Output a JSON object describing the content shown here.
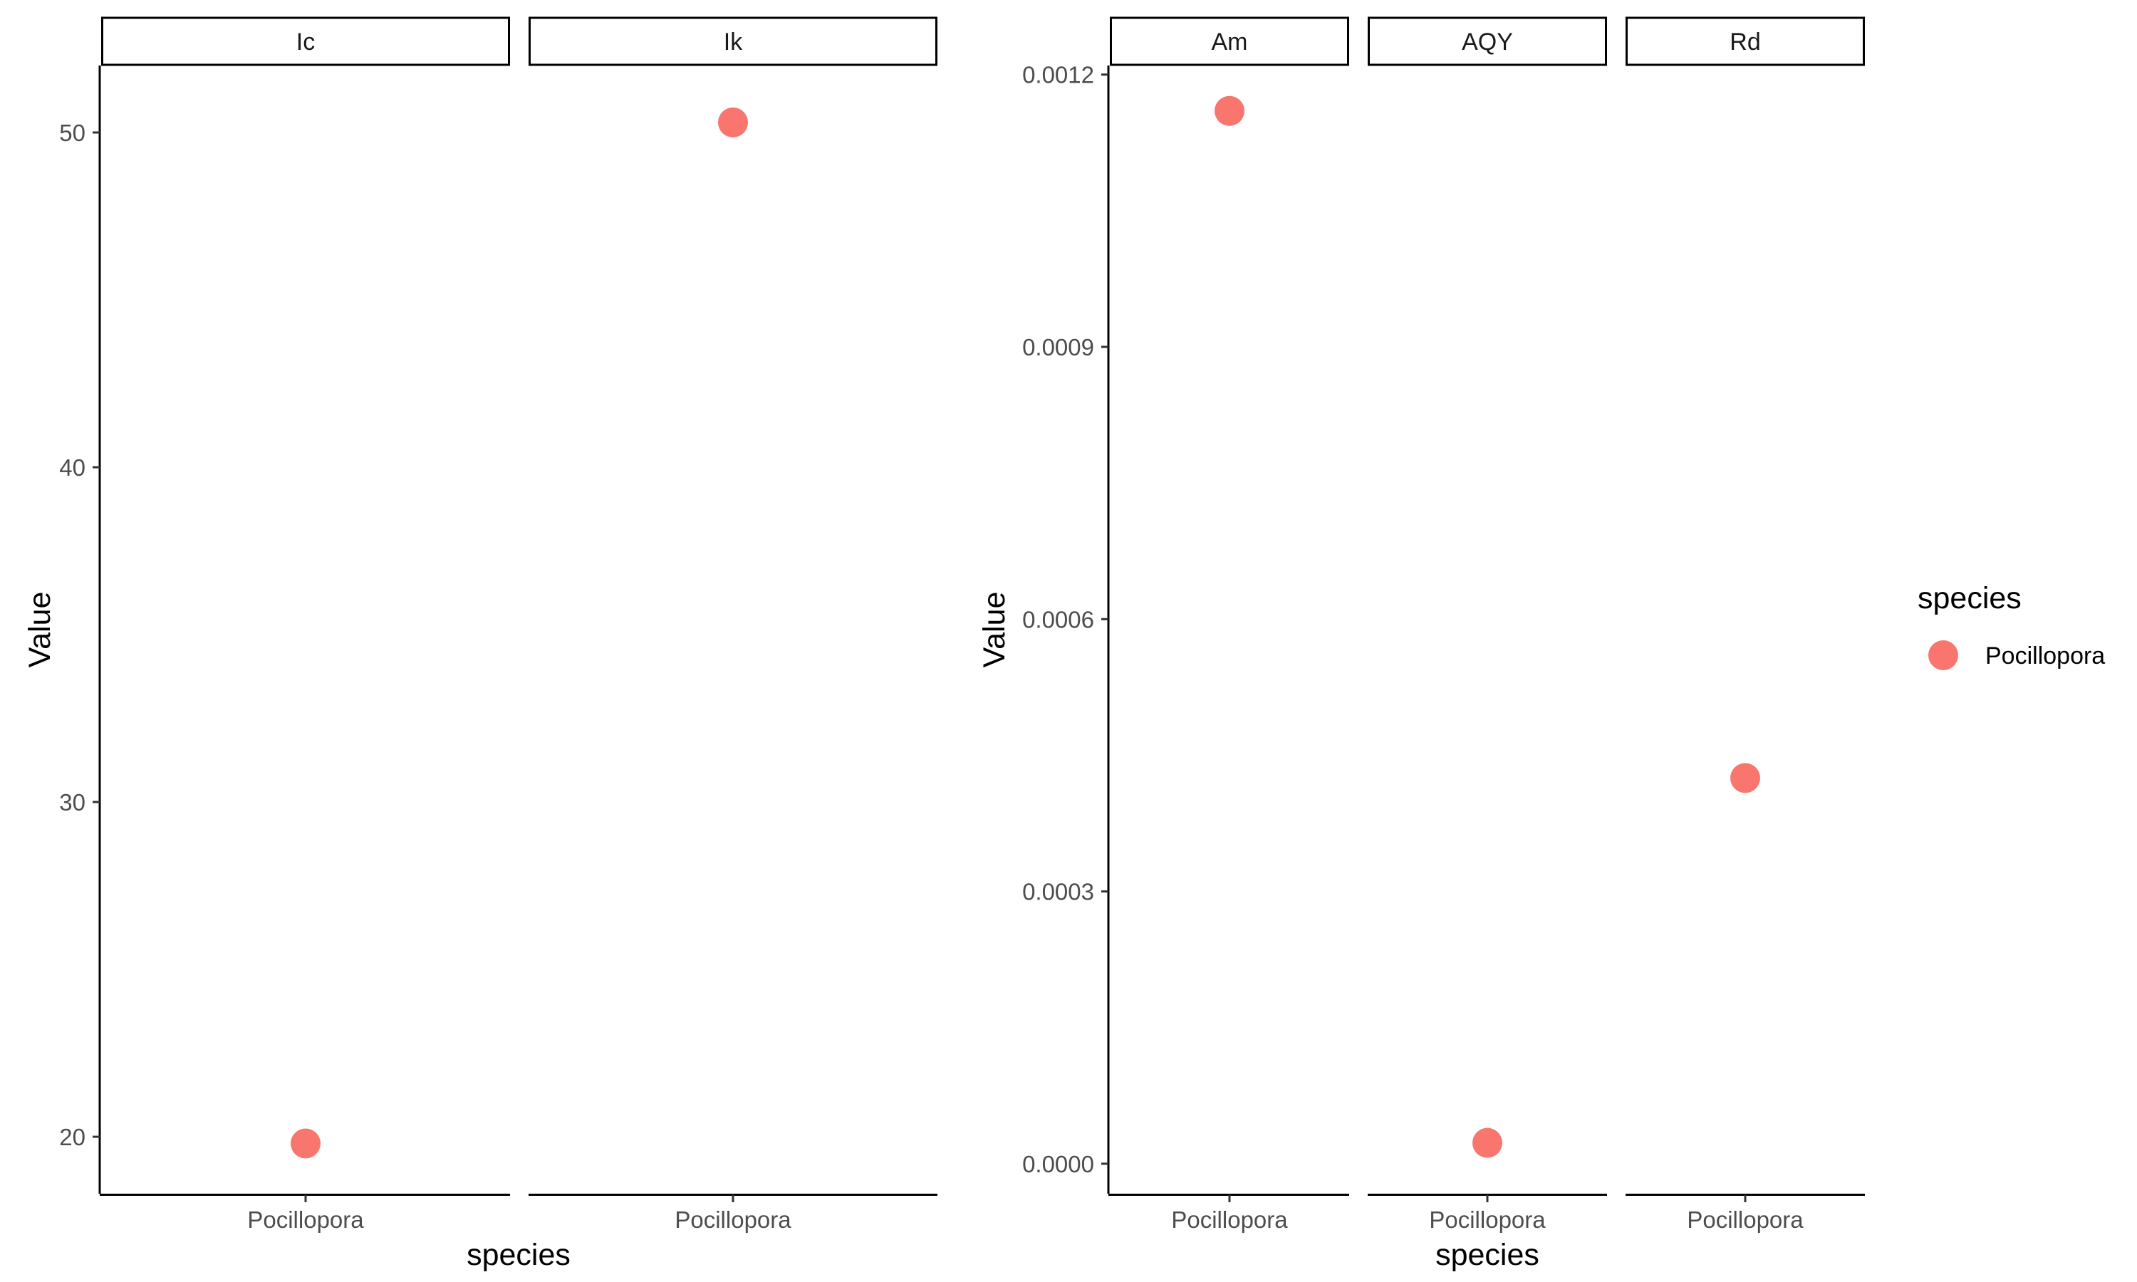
{
  "chart_data": [
    {
      "type": "scatter",
      "facets": [
        "Ic",
        "Ik"
      ],
      "xlabel": "species",
      "ylabel": "Value",
      "ylim": [
        18.3,
        52.0
      ],
      "yticks": [
        20,
        30,
        40,
        50
      ],
      "ytick_labels": [
        "20",
        "30",
        "40",
        "50"
      ],
      "points": [
        {
          "facet": "Ic",
          "x": "Pocillopora",
          "y": 19.8
        },
        {
          "facet": "Ik",
          "x": "Pocillopora",
          "y": 50.3
        }
      ]
    },
    {
      "type": "scatter",
      "facets": [
        "Am",
        "AQY",
        "Rd"
      ],
      "xlabel": "species",
      "ylabel": "Value",
      "ylim": [
        -3.3e-05,
        0.00121
      ],
      "yticks": [
        0.0,
        0.0003,
        0.0006,
        0.0009,
        0.0012
      ],
      "ytick_labels": [
        "0.0000",
        "0.0003",
        "0.0006",
        "0.0009",
        "0.0012"
      ],
      "points": [
        {
          "facet": "Am",
          "x": "Pocillopora",
          "y": 0.00116
        },
        {
          "facet": "AQY",
          "x": "Pocillopora",
          "y": 2.3e-05
        },
        {
          "facet": "Rd",
          "x": "Pocillopora",
          "y": 0.000425
        }
      ]
    }
  ],
  "legend": {
    "title": "species",
    "items": [
      {
        "label": "Pocillopora",
        "color": "#F8766D"
      }
    ],
    "placement": "right"
  },
  "colors": {
    "point": "#F8766D",
    "axis": "#000000",
    "tick_text": "#4d4d4d"
  }
}
